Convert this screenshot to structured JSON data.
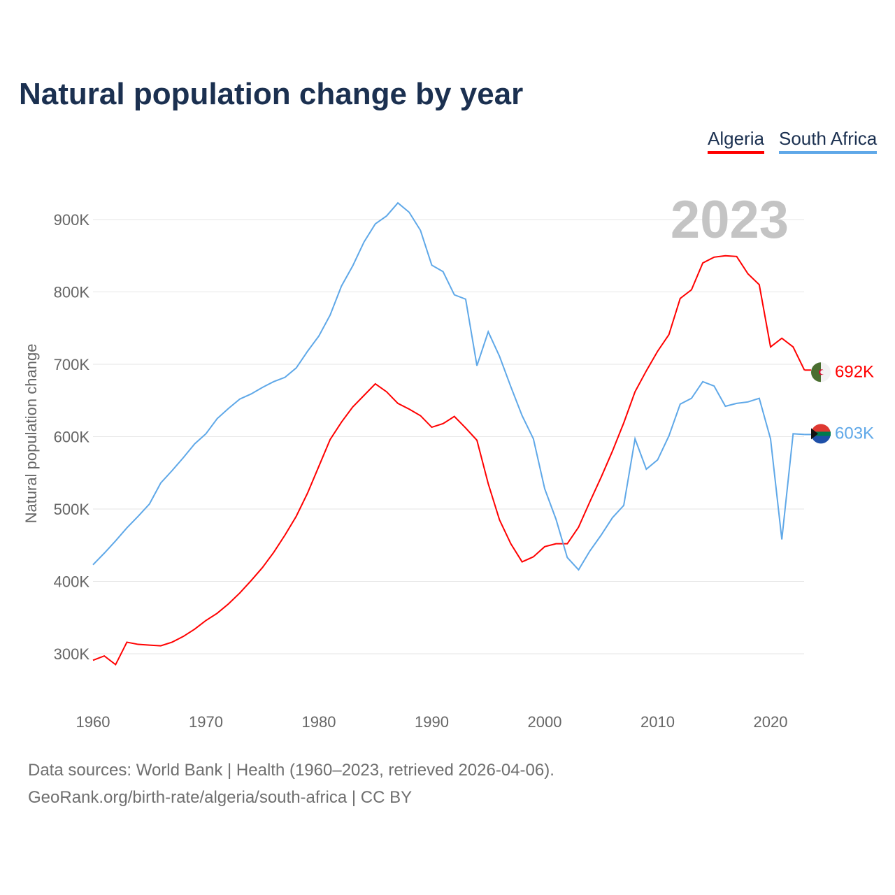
{
  "title": "Natural population change by year",
  "legend": [
    "Algeria",
    "South Africa"
  ],
  "footer": {
    "line1": "Data sources: World Bank | Health (1960–2023, retrieved 2026-04-06).",
    "line2": "GeoRank.org/birth-rate/algeria/south-africa | CC BY"
  },
  "chart_data": {
    "type": "line",
    "title": "Natural population change by year",
    "xlabel": "",
    "ylabel": "Natural population change",
    "year_label": "2023",
    "xlim": [
      1960,
      2023
    ],
    "ylim": [
      250000,
      950000
    ],
    "x_ticks": [
      1960,
      1970,
      1980,
      1990,
      2000,
      2010,
      2020
    ],
    "y_ticks": [
      {
        "v": 300000,
        "label": "300K"
      },
      {
        "v": 400000,
        "label": "400K"
      },
      {
        "v": 500000,
        "label": "500K"
      },
      {
        "v": 600000,
        "label": "600K"
      },
      {
        "v": 700000,
        "label": "700K"
      },
      {
        "v": 800000,
        "label": "800K"
      },
      {
        "v": 900000,
        "label": "900K"
      }
    ],
    "grid": true,
    "x_start": 1960,
    "series": [
      {
        "name": "Algeria",
        "color": "#ff0000",
        "end_label": "692K",
        "values": [
          291,
          297,
          285,
          316,
          313,
          312,
          311,
          316,
          324,
          334,
          346,
          356,
          369,
          384,
          401,
          419,
          440,
          464,
          490,
          522,
          559,
          596,
          620,
          641,
          657,
          673,
          662,
          646,
          638,
          629,
          613,
          618,
          628,
          612,
          595,
          535,
          485,
          452,
          427,
          434,
          448,
          452,
          452,
          475,
          510,
          544,
          580,
          619,
          662,
          691,
          718,
          741,
          791,
          803,
          840,
          848,
          850,
          849,
          825,
          810,
          724,
          736,
          724,
          692
        ]
      },
      {
        "name": "South Africa",
        "color": "#5fa8e8",
        "end_label": "603K",
        "values": [
          423,
          439,
          456,
          474,
          490,
          507,
          536,
          553,
          571,
          590,
          604,
          625,
          639,
          652,
          659,
          668,
          676,
          682,
          695,
          718,
          739,
          768,
          808,
          836,
          869,
          894,
          905,
          923,
          910,
          885,
          837,
          828,
          796,
          790,
          698,
          745,
          711,
          669,
          629,
          597,
          528,
          486,
          433,
          416,
          442,
          464,
          488,
          505,
          597,
          555,
          568,
          601,
          645,
          653,
          676,
          670,
          642,
          646,
          648,
          653,
          597,
          458,
          604,
          603
        ]
      }
    ],
    "value_unit": "thousands"
  }
}
